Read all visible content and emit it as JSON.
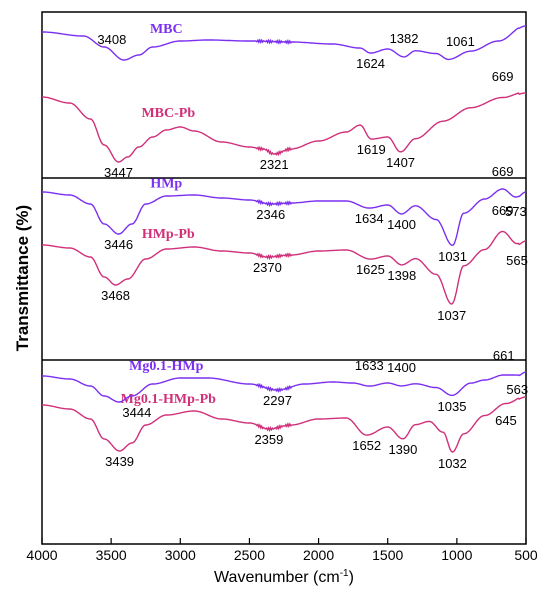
{
  "chart_data": {
    "type": "line",
    "ylabel": "Transmittance (%)",
    "xlabel_main": "Wavenumber (cm",
    "xlabel_sup": "-1",
    "xlabel_close": ")",
    "xlim": [
      4000,
      500
    ],
    "x_ticks": [
      "4000",
      "3500",
      "3000",
      "2500",
      "2000",
      "1500",
      "1000",
      "500"
    ],
    "x_tick_values": [
      4000,
      3500,
      3000,
      2500,
      2000,
      1500,
      1000,
      500
    ],
    "colors": {
      "pb": "#d0307a",
      "base": "#7b2ff0"
    },
    "panels": [
      {
        "series": [
          {
            "name": "MBC-Pb",
            "color": "#d0307a",
            "offset": 85,
            "peaks": [
              {
                "x": 4000,
                "y": 0
              },
              {
                "x": 3800,
                "y": -6
              },
              {
                "x": 3650,
                "y": -22
              },
              {
                "x": 3550,
                "y": -48
              },
              {
                "x": 3447,
                "y": -65
              },
              {
                "x": 3380,
                "y": -60
              },
              {
                "x": 3300,
                "y": -50
              },
              {
                "x": 3200,
                "y": -40
              },
              {
                "x": 3100,
                "y": -33
              },
              {
                "x": 3000,
                "y": -30
              },
              {
                "x": 2900,
                "y": -34
              },
              {
                "x": 2700,
                "y": -45
              },
              {
                "x": 2500,
                "y": -50
              },
              {
                "x": 2400,
                "y": -52
              },
              {
                "x": 2321,
                "y": -57
              },
              {
                "x": 2200,
                "y": -52
              },
              {
                "x": 2000,
                "y": -44
              },
              {
                "x": 1800,
                "y": -35
              },
              {
                "x": 1700,
                "y": -28
              },
              {
                "x": 1619,
                "y": -42
              },
              {
                "x": 1500,
                "y": -40
              },
              {
                "x": 1407,
                "y": -55
              },
              {
                "x": 1300,
                "y": -42
              },
              {
                "x": 1100,
                "y": -25
              },
              {
                "x": 900,
                "y": -12
              },
              {
                "x": 669,
                "y": -2
              },
              {
                "x": 500,
                "y": 4
              }
            ],
            "labels": [
              {
                "x": 3447,
                "text": "3447",
                "dy": 11
              },
              {
                "x": 2321,
                "text": "2321",
                "dy": 11
              },
              {
                "x": 1619,
                "text": "1619",
                "dy": 11
              },
              {
                "x": 1407,
                "text": "1407",
                "dy": 11
              },
              {
                "x": 669,
                "text": "669",
                "dy": -18
              }
            ]
          },
          {
            "name": "MBC",
            "color": "#7b2ff0",
            "offset": 20,
            "peaks": [
              {
                "x": 4000,
                "y": 0
              },
              {
                "x": 3700,
                "y": -4
              },
              {
                "x": 3550,
                "y": -15
              },
              {
                "x": 3408,
                "y": -28
              },
              {
                "x": 3300,
                "y": -23
              },
              {
                "x": 3200,
                "y": -15
              },
              {
                "x": 3000,
                "y": -9
              },
              {
                "x": 2800,
                "y": -8
              },
              {
                "x": 2500,
                "y": -9
              },
              {
                "x": 2200,
                "y": -10
              },
              {
                "x": 1900,
                "y": -12
              },
              {
                "x": 1700,
                "y": -16
              },
              {
                "x": 1624,
                "y": -21
              },
              {
                "x": 1500,
                "y": -17
              },
              {
                "x": 1382,
                "y": -25
              },
              {
                "x": 1300,
                "y": -19
              },
              {
                "x": 1150,
                "y": -22
              },
              {
                "x": 1061,
                "y": -28
              },
              {
                "x": 900,
                "y": -20
              },
              {
                "x": 700,
                "y": -10
              },
              {
                "x": 500,
                "y": 6
              }
            ],
            "labels": [
              {
                "x": 3408,
                "text": "3408",
                "dy": -16,
                "xoff": -12
              },
              {
                "x": 1624,
                "text": "1624",
                "dy": 11
              },
              {
                "x": 1382,
                "text": "1382",
                "dy": -14
              },
              {
                "x": 1061,
                "text": "1061",
                "dy": -14,
                "xoff": 12
              }
            ]
          }
        ]
      },
      {
        "series": [
          {
            "name": "HMp-Pb",
            "color": "#d0307a",
            "offset": 67,
            "peaks": [
              {
                "x": 4000,
                "y": 0
              },
              {
                "x": 3800,
                "y": -3
              },
              {
                "x": 3650,
                "y": -12
              },
              {
                "x": 3550,
                "y": -32
              },
              {
                "x": 3468,
                "y": -40
              },
              {
                "x": 3380,
                "y": -34
              },
              {
                "x": 3250,
                "y": -14
              },
              {
                "x": 3100,
                "y": -4
              },
              {
                "x": 2900,
                "y": -2
              },
              {
                "x": 2700,
                "y": -6
              },
              {
                "x": 2500,
                "y": -8
              },
              {
                "x": 2370,
                "y": -12
              },
              {
                "x": 2200,
                "y": -10
              },
              {
                "x": 2000,
                "y": -6
              },
              {
                "x": 1800,
                "y": -5
              },
              {
                "x": 1625,
                "y": -14
              },
              {
                "x": 1500,
                "y": -11
              },
              {
                "x": 1398,
                "y": -20
              },
              {
                "x": 1300,
                "y": -14
              },
              {
                "x": 1150,
                "y": -30
              },
              {
                "x": 1037,
                "y": -60
              },
              {
                "x": 950,
                "y": -22
              },
              {
                "x": 800,
                "y": -6
              },
              {
                "x": 669,
                "y": 12
              },
              {
                "x": 565,
                "y": 0
              },
              {
                "x": 500,
                "y": 4
              }
            ],
            "labels": [
              {
                "x": 3468,
                "text": "3468",
                "dy": 11
              },
              {
                "x": 2370,
                "text": "2370",
                "dy": 11
              },
              {
                "x": 1625,
                "text": "1625",
                "dy": 11
              },
              {
                "x": 1398,
                "text": "1398",
                "dy": 11
              },
              {
                "x": 1037,
                "text": "1037",
                "dy": 11
              },
              {
                "x": 669,
                "text": "669",
                "dy": -18
              },
              {
                "x": 565,
                "text": "565",
                "dy": 16
              }
            ]
          },
          {
            "name": "HMp",
            "color": "#7b2ff0",
            "offset": 14,
            "peaks": [
              {
                "x": 4000,
                "y": 0
              },
              {
                "x": 3800,
                "y": -3
              },
              {
                "x": 3650,
                "y": -12
              },
              {
                "x": 3550,
                "y": -32
              },
              {
                "x": 3446,
                "y": -42
              },
              {
                "x": 3350,
                "y": -32
              },
              {
                "x": 3250,
                "y": -12
              },
              {
                "x": 3100,
                "y": -4
              },
              {
                "x": 2900,
                "y": -3
              },
              {
                "x": 2700,
                "y": -6
              },
              {
                "x": 2500,
                "y": -8
              },
              {
                "x": 2346,
                "y": -12
              },
              {
                "x": 2200,
                "y": -11
              },
              {
                "x": 2000,
                "y": -9
              },
              {
                "x": 1800,
                "y": -9
              },
              {
                "x": 1634,
                "y": -16
              },
              {
                "x": 1500,
                "y": -13
              },
              {
                "x": 1400,
                "y": -22
              },
              {
                "x": 1300,
                "y": -14
              },
              {
                "x": 1150,
                "y": -28
              },
              {
                "x": 1031,
                "y": -54
              },
              {
                "x": 950,
                "y": -22
              },
              {
                "x": 800,
                "y": -8
              },
              {
                "x": 669,
                "y": 2
              },
              {
                "x": 573,
                "y": -6
              },
              {
                "x": 500,
                "y": 0
              }
            ],
            "labels": [
              {
                "x": 3446,
                "text": "3446",
                "dy": 11
              },
              {
                "x": 2346,
                "text": "2346",
                "dy": 11
              },
              {
                "x": 1634,
                "text": "1634",
                "dy": 11
              },
              {
                "x": 1400,
                "text": "1400",
                "dy": 11
              },
              {
                "x": 1031,
                "text": "1031",
                "dy": 11
              },
              {
                "x": 669,
                "text": "669",
                "dy": -14
              },
              {
                "x": 573,
                "text": "573",
                "dy": 14
              }
            ]
          }
        ]
      },
      {
        "series": [
          {
            "name": "Mg0.1-HMp-Pb",
            "color": "#d0307a",
            "offset": 45,
            "peaks": [
              {
                "x": 4000,
                "y": 0
              },
              {
                "x": 3800,
                "y": -4
              },
              {
                "x": 3650,
                "y": -14
              },
              {
                "x": 3550,
                "y": -34
              },
              {
                "x": 3439,
                "y": -46
              },
              {
                "x": 3350,
                "y": -38
              },
              {
                "x": 3250,
                "y": -20
              },
              {
                "x": 3100,
                "y": -10
              },
              {
                "x": 2900,
                "y": -6
              },
              {
                "x": 2700,
                "y": -14
              },
              {
                "x": 2500,
                "y": -18
              },
              {
                "x": 2359,
                "y": -24
              },
              {
                "x": 2200,
                "y": -20
              },
              {
                "x": 2000,
                "y": -14
              },
              {
                "x": 1800,
                "y": -13
              },
              {
                "x": 1652,
                "y": -30
              },
              {
                "x": 1500,
                "y": -22
              },
              {
                "x": 1390,
                "y": -34
              },
              {
                "x": 1300,
                "y": -20
              },
              {
                "x": 1200,
                "y": -17
              },
              {
                "x": 1100,
                "y": -28
              },
              {
                "x": 1032,
                "y": -48
              },
              {
                "x": 950,
                "y": -30
              },
              {
                "x": 800,
                "y": -12
              },
              {
                "x": 645,
                "y": 0
              },
              {
                "x": 500,
                "y": 8
              }
            ],
            "labels": [
              {
                "x": 3439,
                "text": "3439",
                "dy": 11
              },
              {
                "x": 2359,
                "text": "2359",
                "dy": 11
              },
              {
                "x": 1652,
                "text": "1652",
                "dy": 11
              },
              {
                "x": 1390,
                "text": "1390",
                "dy": 11
              },
              {
                "x": 1032,
                "text": "1032",
                "dy": 11
              },
              {
                "x": 645,
                "text": "645",
                "dy": 16
              }
            ]
          },
          {
            "name": "Mg0.1-HMp",
            "color": "#7b2ff0",
            "offset": 16,
            "peaks": [
              {
                "x": 4000,
                "y": 0
              },
              {
                "x": 3800,
                "y": -3
              },
              {
                "x": 3650,
                "y": -10
              },
              {
                "x": 3550,
                "y": -20
              },
              {
                "x": 3444,
                "y": -26
              },
              {
                "x": 3350,
                "y": -20
              },
              {
                "x": 3200,
                "y": -8
              },
              {
                "x": 3000,
                "y": -2
              },
              {
                "x": 2800,
                "y": -2
              },
              {
                "x": 2500,
                "y": -8
              },
              {
                "x": 2297,
                "y": -14
              },
              {
                "x": 2100,
                "y": -8
              },
              {
                "x": 1900,
                "y": -6
              },
              {
                "x": 1750,
                "y": -7
              },
              {
                "x": 1633,
                "y": -10
              },
              {
                "x": 1500,
                "y": -7
              },
              {
                "x": 1400,
                "y": -10
              },
              {
                "x": 1300,
                "y": -8
              },
              {
                "x": 1150,
                "y": -12
              },
              {
                "x": 1035,
                "y": -20
              },
              {
                "x": 900,
                "y": -8
              },
              {
                "x": 800,
                "y": -5
              },
              {
                "x": 661,
                "y": 0
              },
              {
                "x": 563,
                "y": 0
              },
              {
                "x": 500,
                "y": 4
              }
            ],
            "labels": [
              {
                "x": 3444,
                "text": "3444",
                "dy": 11,
                "xoff": 18
              },
              {
                "x": 2297,
                "text": "2297",
                "dy": 11
              },
              {
                "x": 1633,
                "text": "1633",
                "dy": -16
              },
              {
                "x": 1400,
                "text": "1400",
                "dy": -14
              },
              {
                "x": 1035,
                "text": "1035",
                "dy": 11
              },
              {
                "x": 661,
                "text": "661",
                "dy": -16
              },
              {
                "x": 563,
                "text": "563",
                "dy": 14
              }
            ]
          }
        ]
      }
    ]
  }
}
